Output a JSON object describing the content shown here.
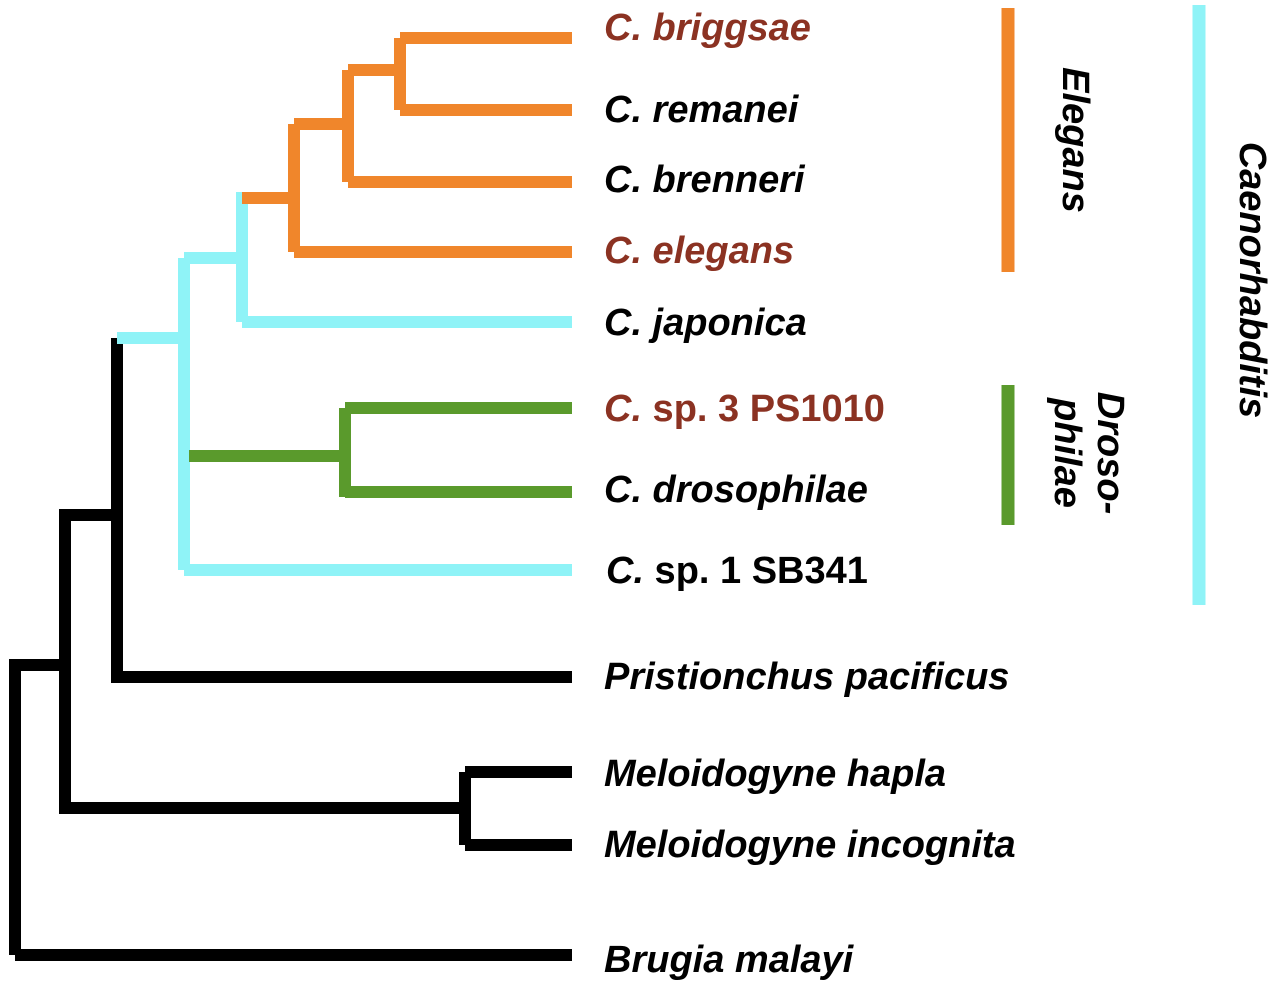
{
  "colors": {
    "black": "#000000",
    "orange": "#f0862b",
    "cyan": "#8ff3f7",
    "green": "#5a9a2c",
    "highlight_text": "#8b3222"
  },
  "taxa": [
    {
      "genus": "C.",
      "rest": "briggsae",
      "rest_italic": true,
      "highlight": true
    },
    {
      "genus": "C.",
      "rest": "remanei",
      "rest_italic": true,
      "highlight": false
    },
    {
      "genus": "C.",
      "rest": "brenneri",
      "rest_italic": true,
      "highlight": false
    },
    {
      "genus": "C.",
      "rest": "elegans",
      "rest_italic": true,
      "highlight": true
    },
    {
      "genus": "C.",
      "rest": "japonica",
      "rest_italic": true,
      "highlight": false
    },
    {
      "genus": "C.",
      "rest": "sp. 3 PS1010",
      "rest_italic": false,
      "highlight": true
    },
    {
      "genus": "C.",
      "rest": "drosophilae",
      "rest_italic": true,
      "highlight": false
    },
    {
      "genus": "C.",
      "rest": "sp. 1 SB341",
      "rest_italic": false,
      "highlight": false
    },
    {
      "genus": "Pristionchus",
      "rest": "pacificus",
      "rest_italic": true,
      "highlight": false
    },
    {
      "genus": "Meloidogyne",
      "rest": "hapla",
      "rest_italic": true,
      "highlight": false
    },
    {
      "genus": "Meloidogyne",
      "rest": "incognita",
      "rest_italic": true,
      "highlight": false
    },
    {
      "genus": "Brugia",
      "rest": "malayi",
      "rest_italic": true,
      "highlight": false
    }
  ],
  "clades": {
    "elegans": {
      "label": "Elegans",
      "color": "orange"
    },
    "drosophilae": {
      "label_line1": "Droso-",
      "label_line2": "philae",
      "color": "green"
    },
    "caenorhabditis": {
      "label": "Caenorhabditis",
      "color": "cyan"
    }
  }
}
